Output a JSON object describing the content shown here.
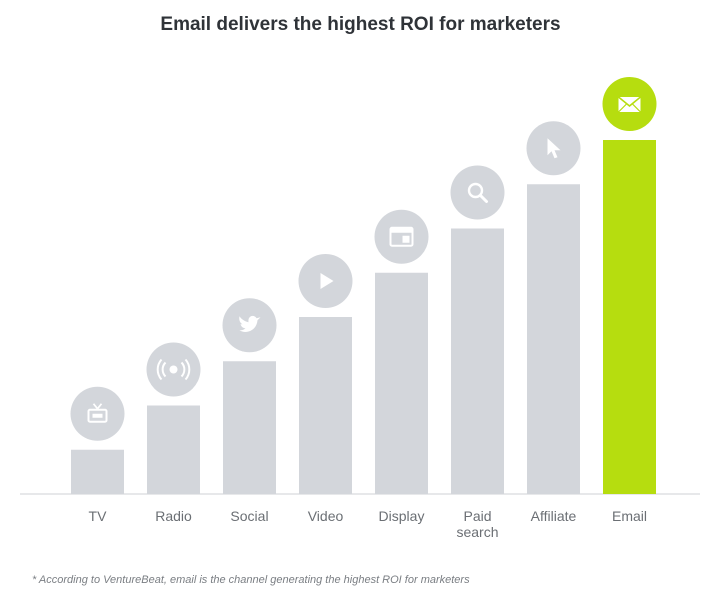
{
  "chart_data": {
    "type": "bar",
    "title": "Email delivers the highest ROI for marketers",
    "xlabel": "",
    "ylabel": "",
    "categories": [
      [
        "TV"
      ],
      [
        "Radio"
      ],
      [
        "Social"
      ],
      [
        "Video"
      ],
      [
        "Display"
      ],
      [
        "Paid",
        "search"
      ],
      [
        "Affiliate"
      ],
      [
        "Email"
      ]
    ],
    "values": [
      1,
      2,
      3,
      4,
      5,
      6,
      7,
      8
    ],
    "icons": [
      "tv-icon",
      "radio-broadcast-icon",
      "twitter-bird-icon",
      "play-icon",
      "browser-window-icon",
      "search-icon",
      "cursor-arrow-icon",
      "envelope-icon"
    ],
    "ylim": [
      0,
      8
    ],
    "grid": false,
    "legend": "none",
    "colors": {
      "bar": "#d3d6db",
      "highlight_bar": "#b6dd0f",
      "icon_circle": "#d3d6db",
      "icon_glyph": "#ffffff",
      "baseline": "#cfd2d6"
    },
    "highlight_index": 7
  },
  "footnote": "* According to VentureBeat, email is the channel generating the highest ROI for marketers"
}
